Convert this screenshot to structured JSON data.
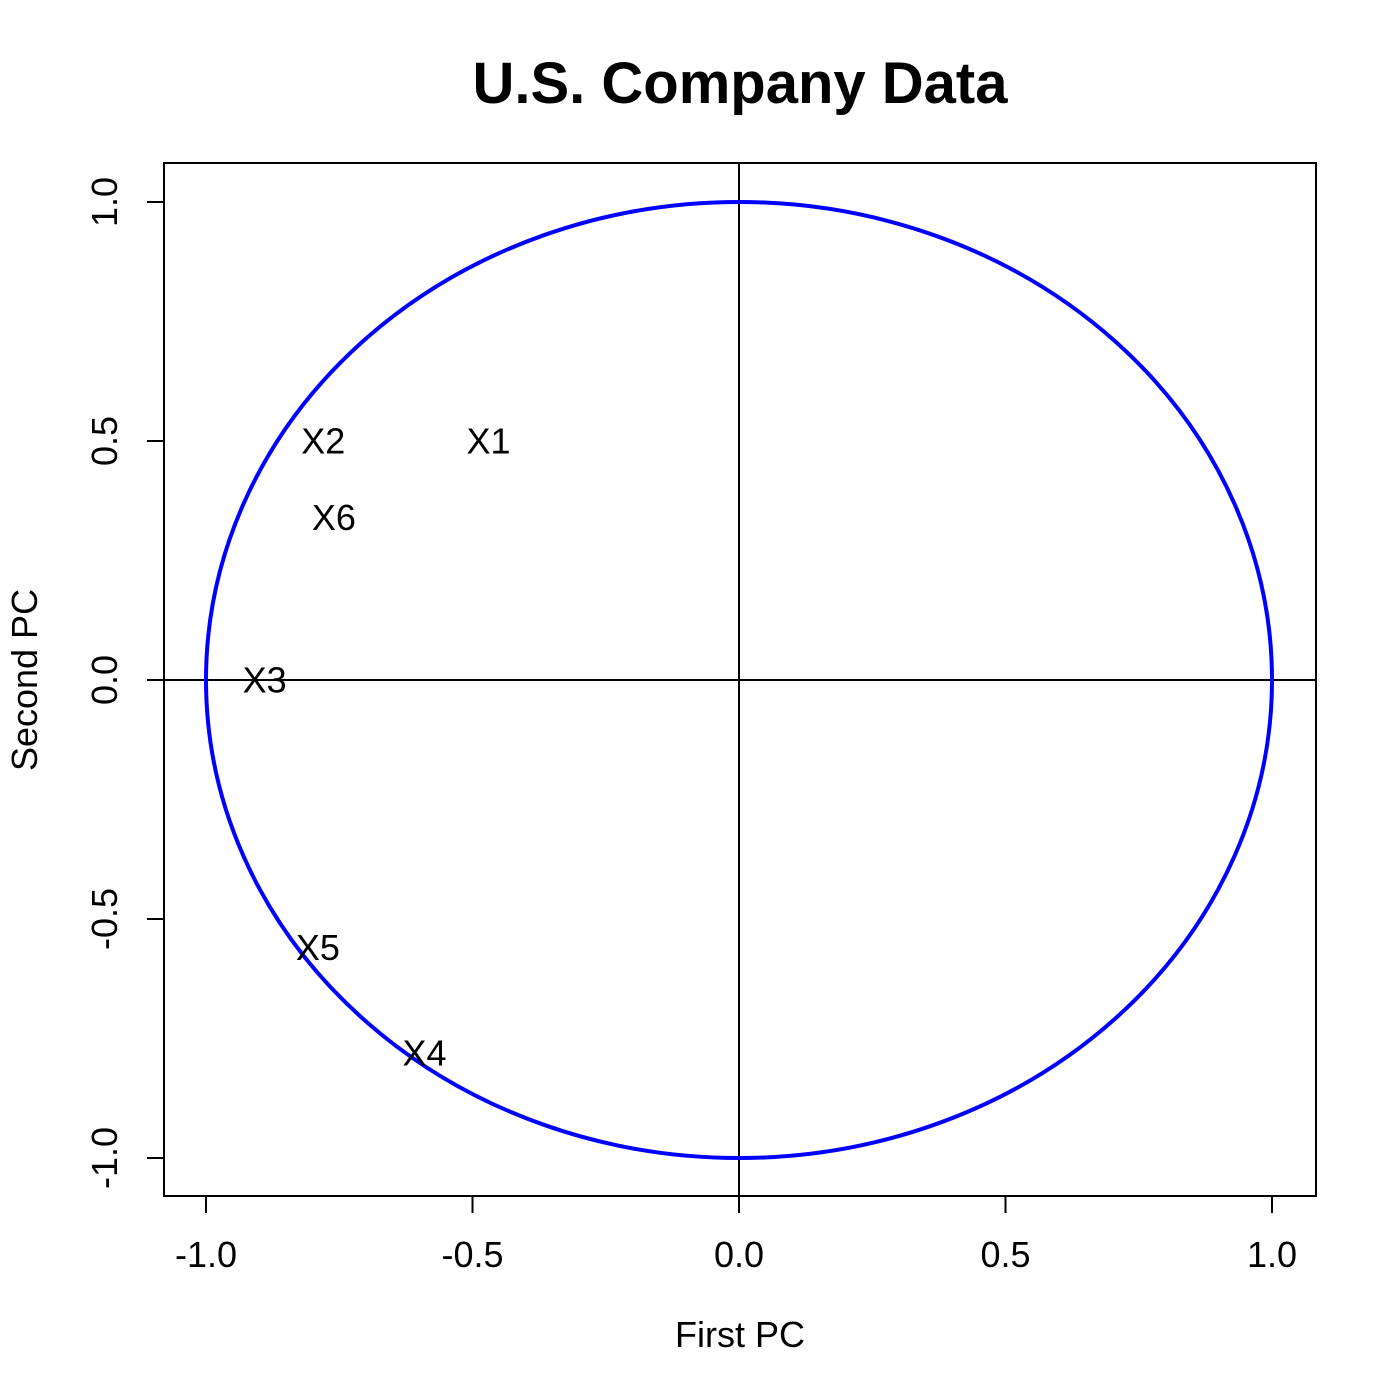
{
  "chart_data": {
    "type": "scatter",
    "title": "U.S. Company Data",
    "xlabel": "First PC",
    "ylabel": "Second PC",
    "xlim": [
      -1.08,
      1.08
    ],
    "ylim": [
      -1.08,
      1.08
    ],
    "x_ticks": [
      {
        "value": -1.0,
        "label": "-1.0"
      },
      {
        "value": -0.5,
        "label": "-0.5"
      },
      {
        "value": 0.0,
        "label": "0.0"
      },
      {
        "value": 0.5,
        "label": "0.5"
      },
      {
        "value": 1.0,
        "label": "1.0"
      }
    ],
    "y_ticks": [
      {
        "value": -1.0,
        "label": "-1.0"
      },
      {
        "value": -0.5,
        "label": "-0.5"
      },
      {
        "value": 0.0,
        "label": "0.0"
      },
      {
        "value": 0.5,
        "label": "0.5"
      },
      {
        "value": 1.0,
        "label": "1.0"
      }
    ],
    "reference_lines": {
      "x": 0,
      "y": 0
    },
    "unit_circle": {
      "radius": 1,
      "color": "#0000ff"
    },
    "points": [
      {
        "label": "X1",
        "x": -0.47,
        "y": 0.5
      },
      {
        "label": "X2",
        "x": -0.78,
        "y": 0.5
      },
      {
        "label": "X3",
        "x": -0.89,
        "y": 0.0
      },
      {
        "label": "X4",
        "x": -0.59,
        "y": -0.78
      },
      {
        "label": "X5",
        "x": -0.79,
        "y": -0.56
      },
      {
        "label": "X6",
        "x": -0.76,
        "y": 0.34
      }
    ],
    "grid": false,
    "legend": "none"
  }
}
